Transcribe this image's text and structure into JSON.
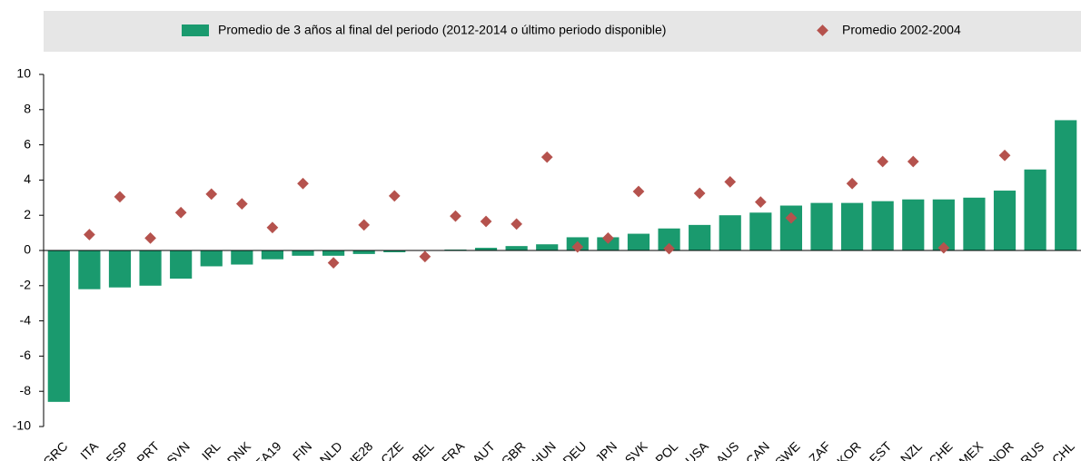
{
  "chart_data": {
    "type": "bar",
    "categories": [
      "GRC",
      "ITA",
      "ESP",
      "PRT",
      "SVN",
      "IRL",
      "DNK",
      "EA19",
      "FIN",
      "NLD",
      "UE28",
      "CZE",
      "BEL",
      "FRA",
      "AUT",
      "GBR",
      "HUN",
      "DEU",
      "JPN",
      "SVK",
      "POL",
      "USA",
      "AUS",
      "CAN",
      "SWE",
      "ZAF",
      "KOR",
      "EST",
      "NZL",
      "CHE",
      "MEX",
      "NOR",
      "RUS",
      "CHL"
    ],
    "series": [
      {
        "name": "Promedio de 3 años al final del periodo (2012-2014 o último periodo disponible)",
        "color": "#1a9a6e",
        "type": "bar",
        "values": [
          -8.6,
          -2.2,
          -2.1,
          -2.0,
          -1.6,
          -0.9,
          -0.8,
          -0.5,
          -0.3,
          -0.3,
          -0.2,
          -0.1,
          0,
          0.05,
          0.15,
          0.25,
          0.35,
          0.75,
          0.75,
          0.95,
          1.25,
          1.45,
          2.0,
          2.15,
          2.55,
          2.7,
          2.7,
          2.8,
          2.9,
          2.9,
          3.0,
          3.4,
          4.6,
          7.4
        ]
      },
      {
        "name": "Promedio 2002-2004",
        "color": "#b5524d",
        "type": "scatter",
        "values": [
          null,
          0.9,
          3.05,
          0.7,
          2.15,
          3.2,
          2.65,
          1.3,
          3.8,
          -0.7,
          1.45,
          3.1,
          -0.35,
          1.95,
          1.65,
          1.5,
          5.3,
          0.2,
          0.7,
          3.35,
          0.1,
          3.25,
          3.9,
          2.75,
          1.85,
          null,
          3.8,
          5.05,
          5.05,
          0.15,
          null,
          5.4,
          null,
          null
        ]
      }
    ],
    "ylim": [
      -10,
      10
    ],
    "yticks": [
      -10,
      -8,
      -6,
      -4,
      -2,
      0,
      2,
      4,
      6,
      8,
      10
    ],
    "legend": "top"
  }
}
